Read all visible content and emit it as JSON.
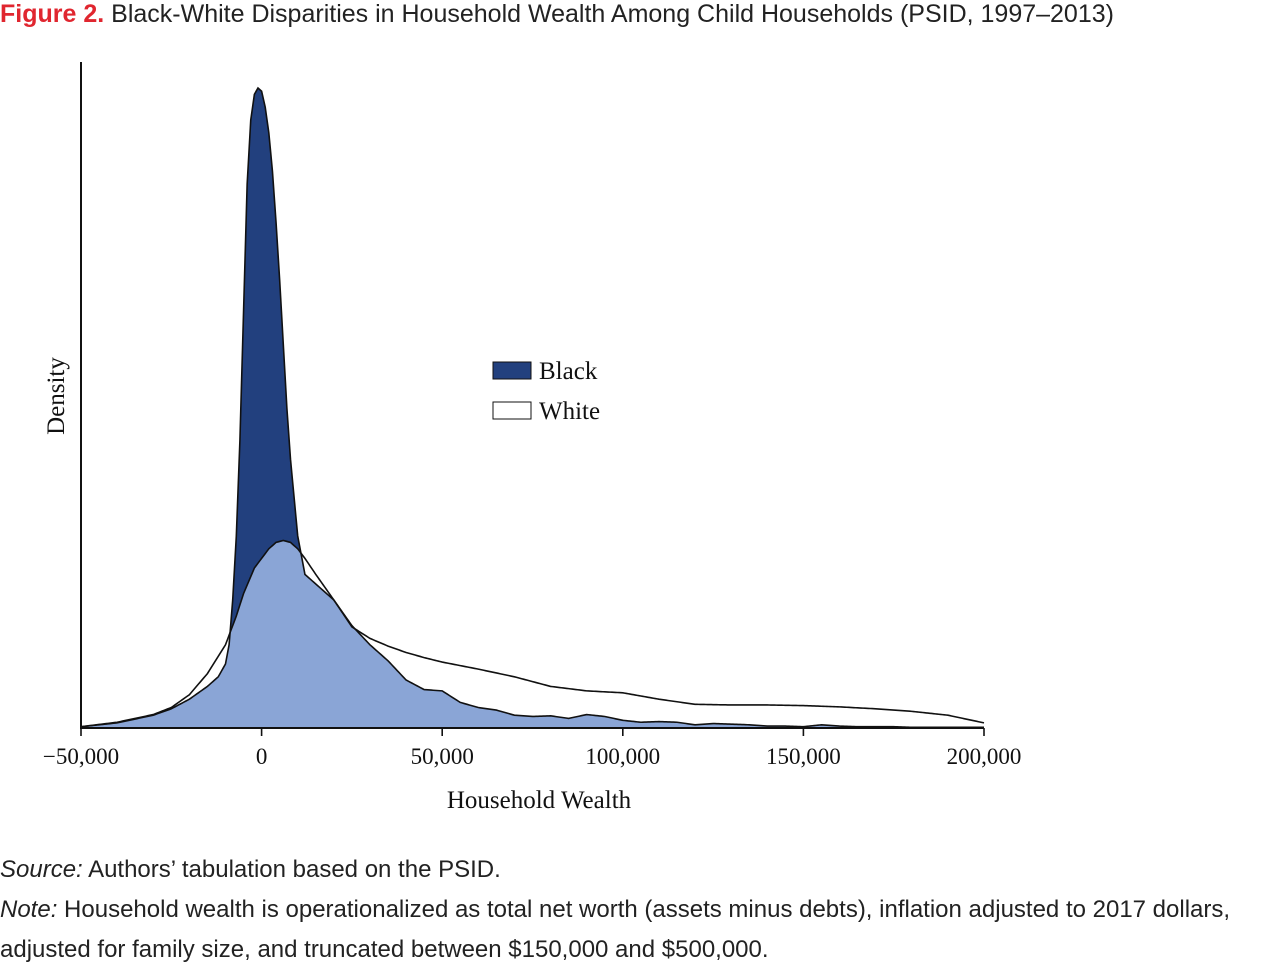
{
  "title": {
    "figure_label": "Figure 2.",
    "text": "Black-White Disparities in Household Wealth Among Child Households (PSID, 1997–2013)"
  },
  "notes": {
    "source_lead": "Source:",
    "source_text": "Authors’ tabulation based on the PSID.",
    "note_lead": "Note:",
    "note_text": "Household wealth is operationalized as total net worth (assets minus debts), inflation adjusted to 2017 dollars, adjusted for family size, and truncated between $150,000 and $500,000."
  },
  "colors": {
    "black_series": "#22407e",
    "overlap": "#8aa5d6",
    "white_series": "#ffffff",
    "axis": "#111111",
    "title_accent": "#e0262f"
  },
  "chart_data": {
    "type": "area",
    "xlabel": "Household Wealth",
    "ylabel": "Density",
    "xlim": [
      -50000,
      200000
    ],
    "ylim": [
      0,
      1
    ],
    "xticks": [
      -50000,
      0,
      50000,
      100000,
      150000,
      200000
    ],
    "xtick_labels": [
      "−50,000",
      "0",
      "50,000",
      "100,000",
      "150,000",
      "200,000"
    ],
    "legend_position": "center",
    "series": [
      {
        "name": "Black",
        "color": "#22407e",
        "x": [
          -50000,
          -40000,
          -30000,
          -25000,
          -20000,
          -15000,
          -12000,
          -10000,
          -9000,
          -8000,
          -7000,
          -6000,
          -5000,
          -4000,
          -3000,
          -2000,
          -1000,
          0,
          1000,
          2000,
          3000,
          4000,
          5000,
          6000,
          7000,
          8000,
          10000,
          12000,
          14000,
          16000,
          20000,
          25000,
          30000,
          35000,
          40000,
          45000,
          50000,
          55000,
          60000,
          65000,
          70000,
          75000,
          80000,
          85000,
          90000,
          95000,
          100000,
          105000,
          110000,
          115000,
          120000,
          125000,
          130000,
          135000,
          140000,
          145000,
          150000,
          155000,
          160000,
          165000,
          170000,
          175000,
          180000,
          190000,
          200000
        ],
        "values": [
          0.002,
          0.008,
          0.02,
          0.03,
          0.045,
          0.065,
          0.08,
          0.1,
          0.13,
          0.2,
          0.3,
          0.45,
          0.65,
          0.85,
          0.95,
          0.99,
          1.0,
          0.995,
          0.97,
          0.93,
          0.87,
          0.79,
          0.7,
          0.6,
          0.5,
          0.42,
          0.3,
          0.24,
          0.23,
          0.22,
          0.2,
          0.16,
          0.13,
          0.105,
          0.075,
          0.06,
          0.058,
          0.04,
          0.032,
          0.028,
          0.02,
          0.018,
          0.019,
          0.015,
          0.021,
          0.018,
          0.012,
          0.009,
          0.01,
          0.009,
          0.005,
          0.007,
          0.006,
          0.005,
          0.003,
          0.003,
          0.002,
          0.005,
          0.003,
          0.002,
          0.002,
          0.002,
          0.001,
          0.001,
          0.001
        ]
      },
      {
        "name": "White",
        "color": "#ffffff",
        "x": [
          -50000,
          -40000,
          -30000,
          -25000,
          -20000,
          -15000,
          -10000,
          -7000,
          -5000,
          -2000,
          0,
          2000,
          4000,
          6000,
          8000,
          10000,
          12000,
          15000,
          20000,
          25000,
          30000,
          35000,
          40000,
          45000,
          50000,
          60000,
          70000,
          80000,
          90000,
          100000,
          110000,
          120000,
          130000,
          140000,
          150000,
          160000,
          170000,
          180000,
          190000,
          200000
        ],
        "values": [
          0.002,
          0.009,
          0.021,
          0.032,
          0.052,
          0.085,
          0.13,
          0.175,
          0.21,
          0.25,
          0.265,
          0.28,
          0.29,
          0.293,
          0.29,
          0.28,
          0.265,
          0.24,
          0.2,
          0.158,
          0.14,
          0.128,
          0.118,
          0.11,
          0.103,
          0.092,
          0.08,
          0.065,
          0.058,
          0.055,
          0.045,
          0.037,
          0.036,
          0.036,
          0.035,
          0.033,
          0.03,
          0.026,
          0.02,
          0.008
        ]
      }
    ]
  }
}
